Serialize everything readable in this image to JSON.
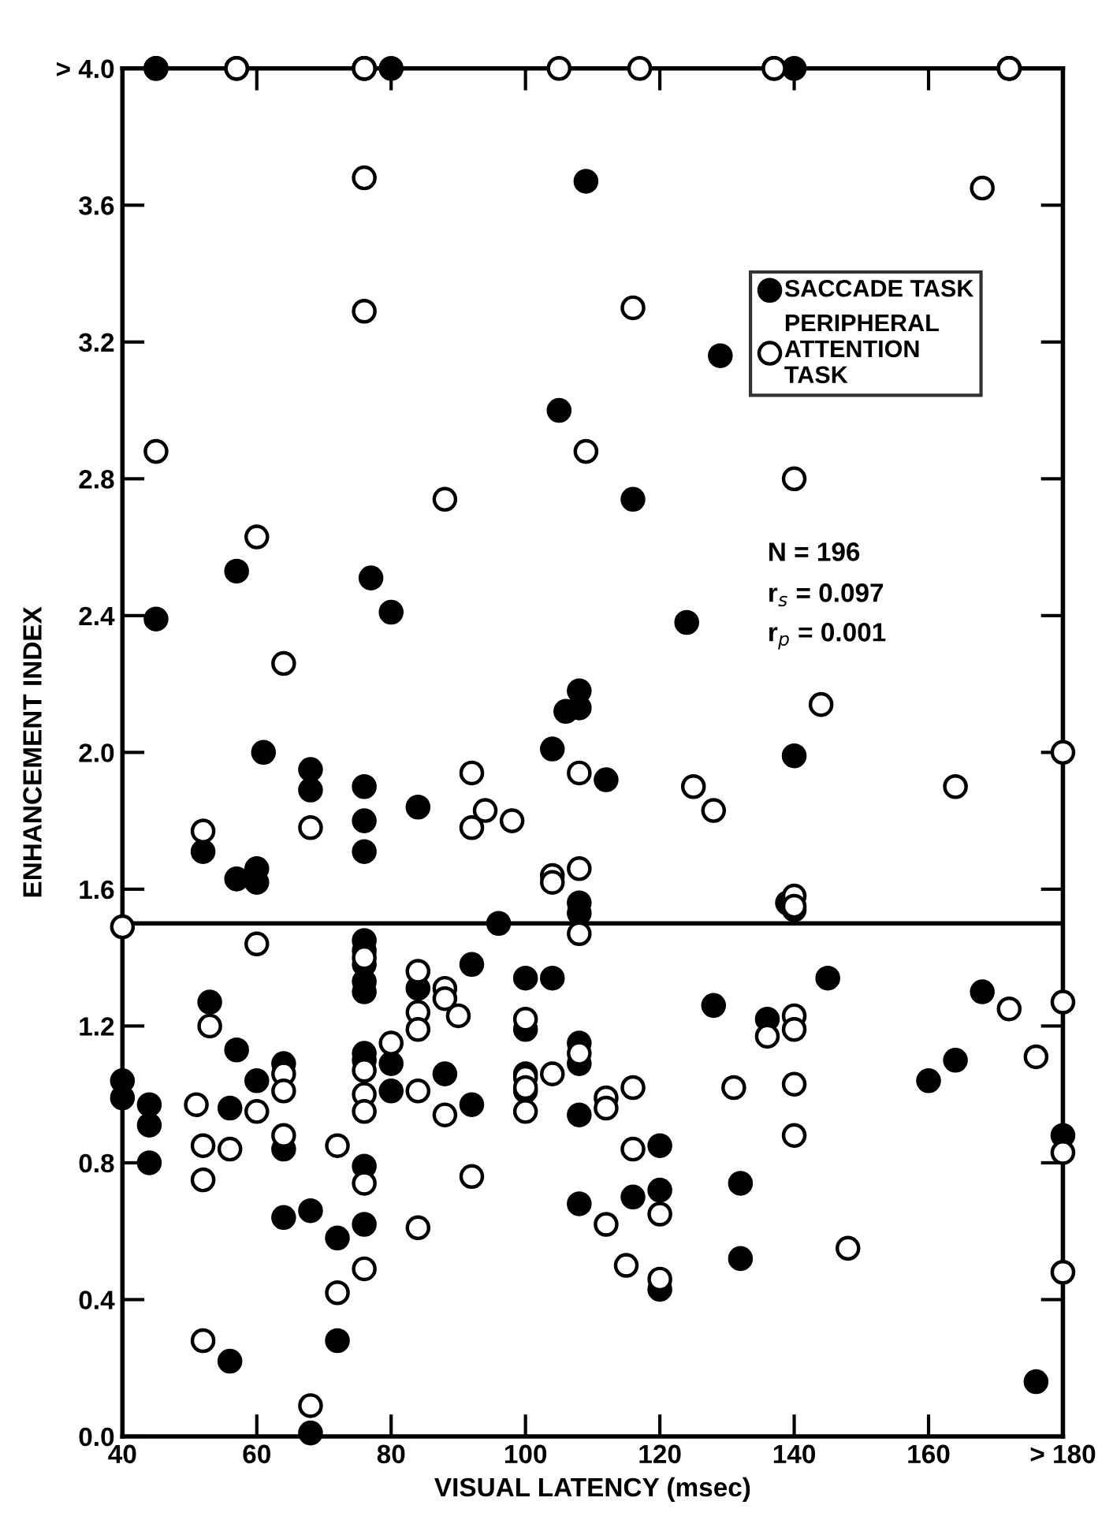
{
  "chart_data": {
    "type": "scatter",
    "xlabel": "VISUAL LATENCY (msec)",
    "ylabel": "ENHANCEMENT INDEX",
    "xlim": [
      40,
      180
    ],
    "ylim": [
      0,
      4.0
    ],
    "xticks": [
      40,
      60,
      80,
      100,
      120,
      140,
      160,
      {
        "value": 180,
        "label": "> 180"
      }
    ],
    "yticks": [
      {
        "value": 0,
        "label": "0.0"
      },
      0.4,
      0.8,
      1.2,
      1.6,
      {
        "value": 2.0,
        "label": "2.0"
      },
      2.4,
      2.8,
      3.2,
      3.6,
      {
        "value": 4.0,
        "label": "> 4.0"
      }
    ],
    "grid": false,
    "legend": "right",
    "marker": "circle",
    "ref_lines": [
      {
        "axis": "y",
        "value": 1.5,
        "color": "#000000"
      }
    ],
    "annotations": [
      "N = 196",
      "r$_{s}$ = 0.097",
      "r$_{p}$ = 0.001"
    ],
    "series": [
      {
        "name": "SACCADE TASK",
        "color": "#000000",
        "x": [
          45,
          45,
          57,
          76,
          76,
          80,
          137,
          140,
          172,
          109,
          129,
          105,
          116,
          57,
          77,
          45,
          80,
          124,
          108,
          108,
          106,
          104,
          112,
          140,
          61,
          68,
          68,
          76,
          84,
          76,
          76,
          52,
          57,
          60,
          60,
          108,
          108,
          139,
          140,
          96,
          40,
          40,
          44,
          44,
          44,
          53,
          57,
          60,
          56,
          64,
          64,
          64,
          68,
          72,
          72,
          68,
          56,
          76,
          76,
          76,
          76,
          76,
          76,
          80,
          80,
          76,
          76,
          76,
          84,
          88,
          92,
          92,
          100,
          104,
          100,
          100,
          100,
          108,
          108,
          108,
          108,
          128,
          136,
          145,
          168,
          164,
          160,
          180,
          120,
          120,
          116,
          132,
          132,
          120,
          176
        ],
        "values": [
          4.0,
          4.0,
          4.0,
          4.0,
          4.0,
          4.0,
          4.0,
          4.0,
          4.0,
          3.67,
          3.16,
          3.0,
          2.74,
          2.53,
          2.51,
          2.39,
          2.41,
          2.38,
          2.18,
          2.13,
          2.12,
          2.01,
          1.92,
          1.99,
          2.0,
          1.95,
          1.89,
          1.9,
          1.84,
          1.8,
          1.71,
          1.71,
          1.63,
          1.66,
          1.62,
          1.56,
          1.53,
          1.56,
          1.54,
          1.5,
          1.04,
          0.99,
          0.97,
          0.91,
          0.8,
          1.27,
          1.13,
          1.04,
          0.96,
          1.09,
          0.84,
          0.64,
          0.66,
          0.58,
          0.28,
          0.01,
          0.22,
          1.45,
          1.42,
          1.38,
          1.33,
          1.3,
          1.12,
          1.09,
          1.01,
          1.1,
          0.79,
          0.62,
          1.31,
          1.06,
          1.38,
          0.97,
          1.34,
          1.34,
          1.19,
          1.06,
          1.01,
          1.15,
          1.09,
          0.94,
          0.68,
          1.26,
          1.22,
          1.34,
          1.3,
          1.1,
          1.04,
          0.88,
          0.85,
          0.72,
          0.7,
          0.74,
          0.52,
          0.43,
          0.16
        ]
      },
      {
        "name": "PERIPHERAL\nATTENTION\nTASK",
        "color": "#ffffff",
        "x": [
          57,
          76,
          105,
          117,
          137,
          172,
          172,
          76,
          76,
          116,
          168,
          45,
          109,
          140,
          88,
          60,
          64,
          144,
          180,
          164,
          125,
          128,
          108,
          92,
          94,
          98,
          92,
          68,
          52,
          104,
          104,
          108,
          108,
          140,
          140,
          40,
          60,
          53,
          51,
          52,
          52,
          56,
          60,
          64,
          64,
          64,
          72,
          72,
          52,
          68,
          76,
          76,
          76,
          76,
          76,
          76,
          80,
          84,
          84,
          84,
          84,
          84,
          88,
          88,
          90,
          88,
          92,
          100,
          100,
          100,
          100,
          104,
          108,
          140,
          140,
          136,
          140,
          131,
          140,
          116,
          112,
          112,
          116,
          112,
          120,
          115,
          120,
          148,
          172,
          180,
          176,
          180,
          180
        ],
        "values": [
          4.0,
          4.0,
          4.0,
          4.0,
          4.0,
          4.0,
          4.0,
          3.68,
          3.29,
          3.3,
          3.65,
          2.88,
          2.88,
          2.8,
          2.74,
          2.63,
          2.26,
          2.14,
          2.0,
          1.9,
          1.9,
          1.83,
          1.94,
          1.94,
          1.83,
          1.8,
          1.78,
          1.78,
          1.77,
          1.64,
          1.62,
          1.66,
          1.47,
          1.58,
          1.55,
          1.49,
          1.44,
          1.2,
          0.97,
          0.85,
          0.75,
          0.84,
          0.95,
          1.06,
          1.01,
          0.88,
          0.85,
          0.42,
          0.28,
          0.09,
          1.4,
          1.07,
          1.0,
          0.95,
          0.74,
          0.49,
          1.15,
          1.36,
          1.24,
          1.19,
          1.01,
          0.61,
          1.31,
          1.28,
          1.23,
          0.94,
          0.76,
          1.22,
          1.05,
          1.02,
          0.95,
          1.06,
          1.12,
          1.23,
          1.19,
          1.17,
          1.03,
          1.02,
          0.88,
          1.02,
          0.99,
          0.96,
          0.84,
          0.62,
          0.65,
          0.5,
          0.46,
          0.55,
          1.25,
          1.27,
          1.11,
          0.83,
          0.48
        ]
      }
    ]
  }
}
